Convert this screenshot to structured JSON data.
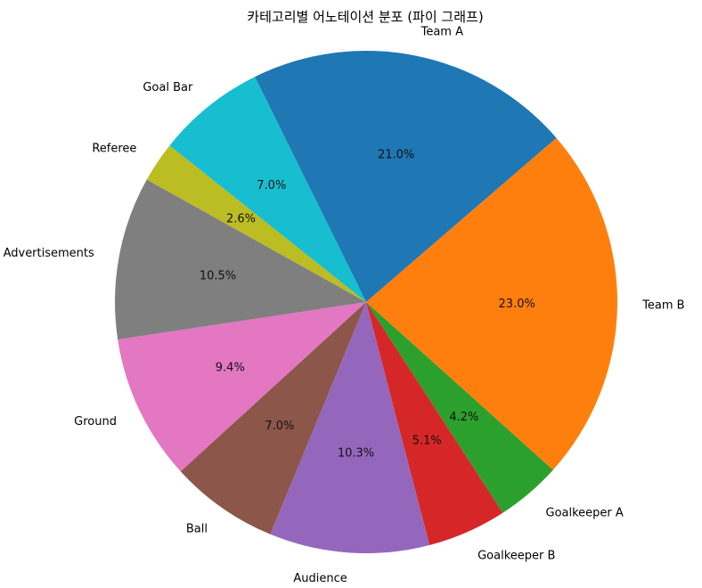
{
  "chart_data": {
    "type": "pie",
    "title": "카테고리별 어노테이션 분포 (파이 그래프)",
    "labels": [
      "Team A",
      "Team B",
      "Goalkeeper A",
      "Goalkeeper B",
      "Audience",
      "Ball",
      "Ground",
      "Advertisements",
      "Referee",
      "Goal Bar"
    ],
    "values": [
      21.0,
      23.0,
      4.2,
      5.1,
      10.3,
      7.0,
      9.4,
      10.5,
      2.6,
      7.0
    ],
    "percent_labels": [
      "21.0%",
      "23.0%",
      "4.2%",
      "5.1%",
      "10.3%",
      "7.0%",
      "9.4%",
      "10.5%",
      "2.6%",
      "7.0%"
    ],
    "colors": [
      "#1f77b4",
      "#ff7f0e",
      "#2ca02c",
      "#d62728",
      "#9467bd",
      "#8c564b",
      "#e377c2",
      "#7f7f7f",
      "#bcbd22",
      "#17becf"
    ],
    "direction": "clockwise",
    "legend": "none"
  }
}
